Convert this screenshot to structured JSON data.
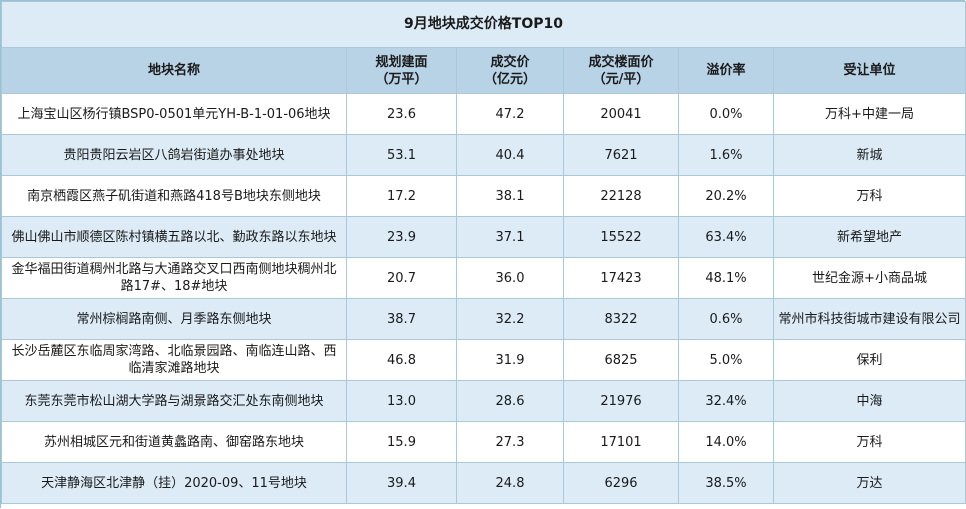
{
  "title": "9月地块成交价格TOP10",
  "headers": {
    "name": "地块名称",
    "area_line1": "规划建面",
    "area_line2": "（万平）",
    "price_line1": "成交价",
    "price_line2": "（亿元）",
    "unit_price_line1": "成交楼面价",
    "unit_price_line2": "（元/平）",
    "premium": "溢价率",
    "buyer": "受让单位"
  },
  "rows": [
    {
      "name": "上海宝山区杨行镇BSP0-0501单元YH-B-1-01-06地块",
      "area": "23.6",
      "price": "47.2",
      "unit_price": "20041",
      "premium": "0.0%",
      "buyer": "万科+中建一局"
    },
    {
      "name": "贵阳贵阳云岩区八鸽岩街道办事处地块",
      "area": "53.1",
      "price": "40.4",
      "unit_price": "7621",
      "premium": "1.6%",
      "buyer": "新城"
    },
    {
      "name": "南京栖霞区燕子矶街道和燕路418号B地块东侧地块",
      "area": "17.2",
      "price": "38.1",
      "unit_price": "22128",
      "premium": "20.2%",
      "buyer": "万科"
    },
    {
      "name": "佛山佛山市顺德区陈村镇横五路以北、勤政东路以东地块",
      "area": "23.9",
      "price": "37.1",
      "unit_price": "15522",
      "premium": "63.4%",
      "buyer": "新希望地产"
    },
    {
      "name": "金华福田街道稠州北路与大通路交叉口西南侧地块稠州北路17#、18#地块",
      "area": "20.7",
      "price": "36.0",
      "unit_price": "17423",
      "premium": "48.1%",
      "buyer": "世纪金源+小商品城"
    },
    {
      "name": "常州棕榈路南侧、月季路东侧地块",
      "area": "38.7",
      "price": "32.2",
      "unit_price": "8322",
      "premium": "0.6%",
      "buyer": "常州市科技街城市建设有限公司"
    },
    {
      "name": "长沙岳麓区东临周家湾路、北临景园路、南临连山路、西临清家滩路地块",
      "area": "46.8",
      "price": "31.9",
      "unit_price": "6825",
      "premium": "5.0%",
      "buyer": "保利"
    },
    {
      "name": "东莞东莞市松山湖大学路与湖景路交汇处东南侧地块",
      "area": "13.0",
      "price": "28.6",
      "unit_price": "21976",
      "premium": "32.4%",
      "buyer": "中海"
    },
    {
      "name": "苏州相城区元和街道黄蠡路南、御窑路东地块",
      "area": "15.9",
      "price": "27.3",
      "unit_price": "17101",
      "premium": "14.0%",
      "buyer": "万科"
    },
    {
      "name": "天津静海区北津静（挂）2020-09、11号地块",
      "area": "39.4",
      "price": "24.8",
      "unit_price": "6296",
      "premium": "38.5%",
      "buyer": "万达"
    }
  ]
}
